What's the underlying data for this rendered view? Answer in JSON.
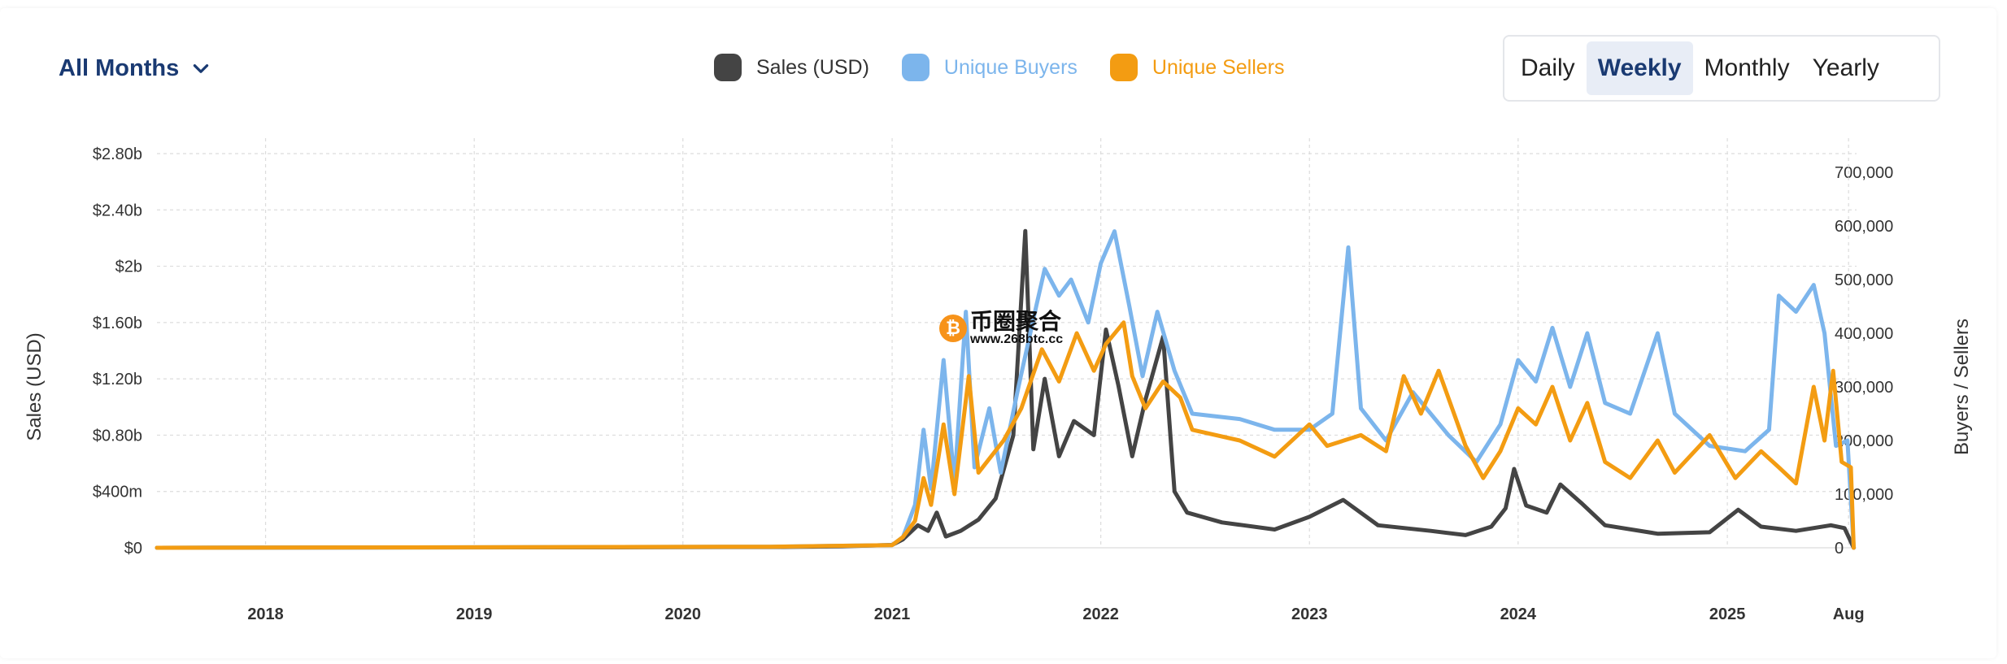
{
  "controls": {
    "months_label": "All Months",
    "periods": [
      "Daily",
      "Weekly",
      "Monthly",
      "Yearly"
    ],
    "active_period": "Weekly"
  },
  "watermark": {
    "cn": "币圈聚合",
    "url": "www.268btc.cc",
    "coin": "₿"
  },
  "chart_data": {
    "type": "line",
    "legend": [
      {
        "name": "Sales (USD)",
        "color": "#444444"
      },
      {
        "name": "Unique Buyers",
        "color": "#7cb5ec"
      },
      {
        "name": "Unique Sellers",
        "color": "#f39c12"
      }
    ],
    "legend_position": "top-center",
    "grid": true,
    "x_ticks": [
      "2018",
      "2019",
      "2020",
      "2021",
      "2022",
      "2023",
      "2024",
      "2025",
      "Aug"
    ],
    "xlim": [
      "2017-06-25",
      "2025-08-15"
    ],
    "y_left": {
      "label": "Sales (USD)",
      "ticks": [
        "$0",
        "$400m",
        "$0.80b",
        "$1.20b",
        "$1.60b",
        "$2b",
        "$2.40b",
        "$2.80b"
      ],
      "tick_values": [
        0,
        400000000,
        800000000,
        1200000000,
        1600000000,
        2000000000,
        2400000000,
        2800000000
      ],
      "ylim": [
        0,
        2800000000
      ]
    },
    "y_right": {
      "label": "Buyers / Sellers",
      "ticks": [
        "0",
        "100,000",
        "200,000",
        "300,000",
        "400,000",
        "500,000",
        "600,000",
        "700,000"
      ],
      "tick_values": [
        0,
        100000,
        200000,
        300000,
        400000,
        500000,
        600000,
        700000
      ],
      "ylim": [
        0,
        700000
      ]
    },
    "series": [
      {
        "name": "Sales (USD)",
        "axis": "left",
        "color": "#444444",
        "points": [
          [
            "2017-06-25",
            0
          ],
          [
            "2020-06-01",
            5000000
          ],
          [
            "2020-10-01",
            10000000
          ],
          [
            "2021-01-01",
            20000000
          ],
          [
            "2021-01-20",
            60000000
          ],
          [
            "2021-02-15",
            160000000
          ],
          [
            "2021-03-05",
            120000000
          ],
          [
            "2021-03-20",
            250000000
          ],
          [
            "2021-04-05",
            80000000
          ],
          [
            "2021-05-01",
            120000000
          ],
          [
            "2021-06-01",
            200000000
          ],
          [
            "2021-07-01",
            350000000
          ],
          [
            "2021-08-01",
            800000000
          ],
          [
            "2021-08-22",
            2250000000
          ],
          [
            "2021-09-05",
            700000000
          ],
          [
            "2021-09-25",
            1200000000
          ],
          [
            "2021-10-20",
            650000000
          ],
          [
            "2021-11-15",
            900000000
          ],
          [
            "2021-12-20",
            800000000
          ],
          [
            "2022-01-10",
            1550000000
          ],
          [
            "2022-02-01",
            1150000000
          ],
          [
            "2022-02-25",
            650000000
          ],
          [
            "2022-03-20",
            1050000000
          ],
          [
            "2022-04-20",
            1500000000
          ],
          [
            "2022-05-10",
            400000000
          ],
          [
            "2022-06-01",
            250000000
          ],
          [
            "2022-08-01",
            180000000
          ],
          [
            "2022-11-01",
            130000000
          ],
          [
            "2023-01-01",
            220000000
          ],
          [
            "2023-03-01",
            340000000
          ],
          [
            "2023-05-01",
            160000000
          ],
          [
            "2023-08-01",
            120000000
          ],
          [
            "2023-10-01",
            90000000
          ],
          [
            "2023-11-15",
            150000000
          ],
          [
            "2023-12-10",
            280000000
          ],
          [
            "2023-12-25",
            560000000
          ],
          [
            "2024-01-15",
            300000000
          ],
          [
            "2024-02-20",
            250000000
          ],
          [
            "2024-03-15",
            450000000
          ],
          [
            "2024-04-20",
            320000000
          ],
          [
            "2024-06-01",
            160000000
          ],
          [
            "2024-09-01",
            100000000
          ],
          [
            "2024-12-01",
            110000000
          ],
          [
            "2025-01-20",
            270000000
          ],
          [
            "2025-03-01",
            150000000
          ],
          [
            "2025-05-01",
            120000000
          ],
          [
            "2025-07-01",
            160000000
          ],
          [
            "2025-07-25",
            140000000
          ],
          [
            "2025-08-10",
            0
          ]
        ]
      },
      {
        "name": "Unique Buyers",
        "axis": "right",
        "color": "#7cb5ec",
        "points": [
          [
            "2017-06-25",
            0
          ],
          [
            "2020-06-01",
            2000
          ],
          [
            "2021-01-01",
            5000
          ],
          [
            "2021-01-20",
            20000
          ],
          [
            "2021-02-10",
            80000
          ],
          [
            "2021-02-25",
            220000
          ],
          [
            "2021-03-10",
            110000
          ],
          [
            "2021-04-01",
            350000
          ],
          [
            "2021-04-20",
            120000
          ],
          [
            "2021-05-10",
            440000
          ],
          [
            "2021-05-25",
            150000
          ],
          [
            "2021-06-20",
            260000
          ],
          [
            "2021-07-10",
            140000
          ],
          [
            "2021-08-10",
            300000
          ],
          [
            "2021-09-10",
            450000
          ],
          [
            "2021-09-25",
            520000
          ],
          [
            "2021-10-20",
            470000
          ],
          [
            "2021-11-10",
            500000
          ],
          [
            "2021-12-10",
            420000
          ],
          [
            "2022-01-01",
            530000
          ],
          [
            "2022-01-25",
            590000
          ],
          [
            "2022-02-20",
            450000
          ],
          [
            "2022-03-15",
            320000
          ],
          [
            "2022-04-10",
            440000
          ],
          [
            "2022-05-10",
            330000
          ],
          [
            "2022-06-10",
            250000
          ],
          [
            "2022-09-01",
            240000
          ],
          [
            "2022-11-01",
            220000
          ],
          [
            "2023-01-01",
            220000
          ],
          [
            "2023-02-10",
            250000
          ],
          [
            "2023-03-10",
            560000
          ],
          [
            "2023-04-01",
            260000
          ],
          [
            "2023-05-15",
            200000
          ],
          [
            "2023-07-01",
            290000
          ],
          [
            "2023-09-01",
            210000
          ],
          [
            "2023-10-20",
            160000
          ],
          [
            "2023-12-01",
            230000
          ],
          [
            "2024-01-01",
            350000
          ],
          [
            "2024-02-01",
            310000
          ],
          [
            "2024-03-01",
            410000
          ],
          [
            "2024-04-01",
            300000
          ],
          [
            "2024-05-01",
            400000
          ],
          [
            "2024-06-01",
            270000
          ],
          [
            "2024-07-15",
            250000
          ],
          [
            "2024-09-01",
            400000
          ],
          [
            "2024-10-01",
            250000
          ],
          [
            "2024-12-01",
            190000
          ],
          [
            "2025-02-01",
            180000
          ],
          [
            "2025-03-15",
            220000
          ],
          [
            "2025-04-01",
            470000
          ],
          [
            "2025-05-01",
            440000
          ],
          [
            "2025-06-01",
            490000
          ],
          [
            "2025-06-20",
            400000
          ],
          [
            "2025-07-10",
            190000
          ],
          [
            "2025-07-30",
            200000
          ],
          [
            "2025-08-10",
            0
          ]
        ]
      },
      {
        "name": "Unique Sellers",
        "axis": "right",
        "color": "#f39c12",
        "points": [
          [
            "2017-06-25",
            0
          ],
          [
            "2020-06-01",
            2000
          ],
          [
            "2021-01-01",
            5000
          ],
          [
            "2021-01-20",
            20000
          ],
          [
            "2021-02-10",
            50000
          ],
          [
            "2021-02-25",
            130000
          ],
          [
            "2021-03-10",
            80000
          ],
          [
            "2021-04-01",
            230000
          ],
          [
            "2021-04-20",
            100000
          ],
          [
            "2021-05-15",
            320000
          ],
          [
            "2021-06-01",
            140000
          ],
          [
            "2021-07-15",
            200000
          ],
          [
            "2021-08-15",
            260000
          ],
          [
            "2021-09-20",
            370000
          ],
          [
            "2021-10-20",
            310000
          ],
          [
            "2021-11-20",
            400000
          ],
          [
            "2021-12-20",
            330000
          ],
          [
            "2022-01-10",
            380000
          ],
          [
            "2022-02-10",
            420000
          ],
          [
            "2022-02-25",
            320000
          ],
          [
            "2022-03-20",
            260000
          ],
          [
            "2022-04-20",
            310000
          ],
          [
            "2022-05-20",
            280000
          ],
          [
            "2022-06-10",
            220000
          ],
          [
            "2022-09-01",
            200000
          ],
          [
            "2022-11-01",
            170000
          ],
          [
            "2023-01-01",
            230000
          ],
          [
            "2023-02-01",
            190000
          ],
          [
            "2023-04-01",
            210000
          ],
          [
            "2023-05-15",
            180000
          ],
          [
            "2023-06-15",
            320000
          ],
          [
            "2023-07-15",
            250000
          ],
          [
            "2023-08-15",
            330000
          ],
          [
            "2023-10-01",
            190000
          ],
          [
            "2023-11-01",
            130000
          ],
          [
            "2023-12-01",
            180000
          ],
          [
            "2024-01-01",
            260000
          ],
          [
            "2024-02-01",
            230000
          ],
          [
            "2024-03-01",
            300000
          ],
          [
            "2024-04-01",
            200000
          ],
          [
            "2024-05-01",
            270000
          ],
          [
            "2024-06-01",
            160000
          ],
          [
            "2024-07-15",
            130000
          ],
          [
            "2024-09-01",
            200000
          ],
          [
            "2024-10-01",
            140000
          ],
          [
            "2024-12-01",
            210000
          ],
          [
            "2025-01-15",
            130000
          ],
          [
            "2025-03-01",
            180000
          ],
          [
            "2025-04-01",
            150000
          ],
          [
            "2025-05-01",
            120000
          ],
          [
            "2025-06-01",
            300000
          ],
          [
            "2025-06-20",
            200000
          ],
          [
            "2025-07-05",
            330000
          ],
          [
            "2025-07-20",
            160000
          ],
          [
            "2025-08-05",
            150000
          ],
          [
            "2025-08-10",
            0
          ]
        ]
      }
    ]
  }
}
